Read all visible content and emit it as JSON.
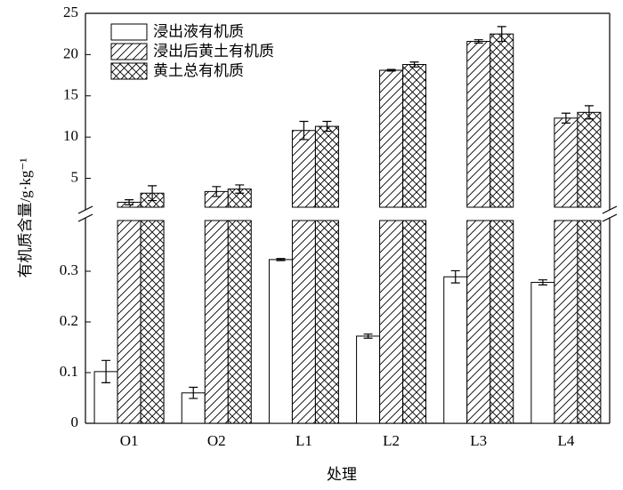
{
  "chart_data": {
    "type": "bar",
    "categories": [
      "O1",
      "O2",
      "L1",
      "L2",
      "L3",
      "L4"
    ],
    "series": [
      {
        "name": "浸出液有机质",
        "pattern": "none",
        "values": [
          0.102,
          0.06,
          0.323,
          0.172,
          0.289,
          0.278
        ],
        "errors": [
          0.022,
          0.011,
          0.002,
          0.004,
          0.012,
          0.005
        ]
      },
      {
        "name": "浸出后黄土有机质",
        "pattern": "hatch",
        "values": [
          2.1,
          3.4,
          10.8,
          18.1,
          21.6,
          12.3
        ],
        "errors": [
          0.3,
          0.6,
          1.1,
          0.1,
          0.2,
          0.6
        ]
      },
      {
        "name": "黄土总有机质",
        "pattern": "cross",
        "values": [
          3.2,
          3.7,
          11.3,
          18.8,
          22.5,
          13.0
        ],
        "errors": [
          0.9,
          0.5,
          0.6,
          0.3,
          0.9,
          0.8
        ]
      }
    ],
    "ylim": [
      0,
      0.4
    ],
    "yticks": [
      0,
      0.1,
      0.2,
      0.3
    ],
    "upper_ylim": [
      1.5,
      25
    ],
    "upper_yticks": [
      5,
      10,
      15,
      20,
      25
    ],
    "xlabel": "处理",
    "ylabel": "有机质含量/g·kg⁻¹"
  }
}
